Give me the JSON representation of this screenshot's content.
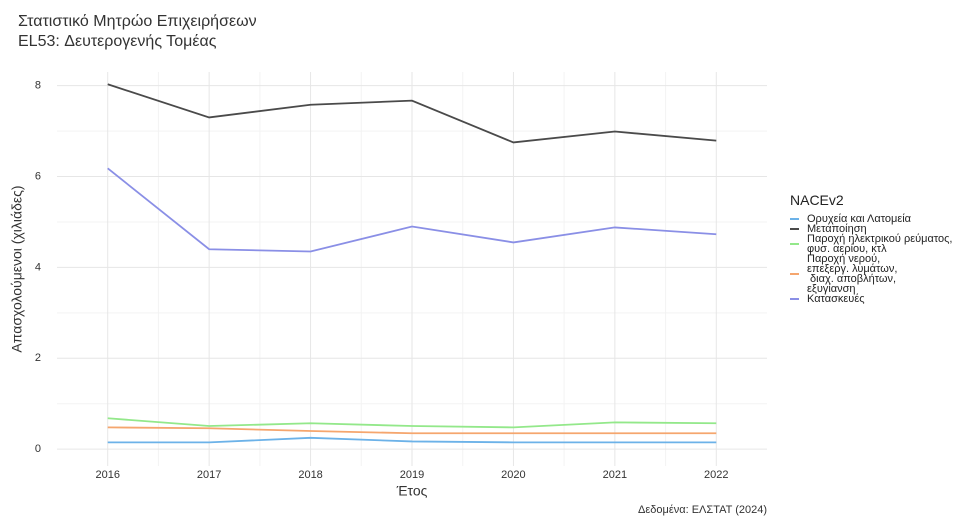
{
  "chart_data": {
    "type": "line",
    "title": "Στατιστικό Μητρώο Επιχειρήσεων",
    "subtitle": "EL53: Δευτερογενής Τομέας",
    "caption": "Δεδομένα: ΕΛΣΤΑΤ (2024)",
    "x_label": "Έτος",
    "y_label": "Απασχολούμενοι (χιλιάδες)",
    "legend_title": "NACEv2",
    "legend_position": "right",
    "grid": true,
    "x": [
      2016,
      2017,
      2018,
      2019,
      2020,
      2021,
      2022
    ],
    "xlim": [
      2015.5,
      2022.5
    ],
    "xticks": [
      2016,
      2017,
      2018,
      2019,
      2020,
      2021,
      2022
    ],
    "ylim": [
      -0.37,
      8.3
    ],
    "yticks": [
      0,
      2,
      4,
      6,
      8
    ],
    "series": [
      {
        "name": "Ορυχεία και Λατομεία",
        "color": "#6cb2e8",
        "values": [
          0.15,
          0.15,
          0.25,
          0.17,
          0.15,
          0.15,
          0.15
        ]
      },
      {
        "name": "Μεταποίηση",
        "color": "#4a4a4a",
        "values": [
          8.03,
          7.3,
          7.58,
          7.67,
          6.75,
          6.99,
          6.79
        ]
      },
      {
        "name": "Παροχή ηλεκτρικού ρεύματος,\nφυσ. αερίου, κτλ",
        "color": "#93e88a",
        "values": [
          0.68,
          0.51,
          0.57,
          0.51,
          0.48,
          0.59,
          0.57
        ]
      },
      {
        "name": "Παροχή νερού,\nεπεξεργ. λυμάτων,\n διαχ. αποβλήτων,\nεξυγίανση",
        "color": "#f5a66e",
        "values": [
          0.48,
          0.46,
          0.4,
          0.35,
          0.35,
          0.35,
          0.35
        ]
      },
      {
        "name": "Κατασκευές",
        "color": "#8a8fe6",
        "values": [
          6.18,
          4.4,
          4.35,
          4.9,
          4.55,
          4.88,
          4.73
        ]
      }
    ]
  }
}
